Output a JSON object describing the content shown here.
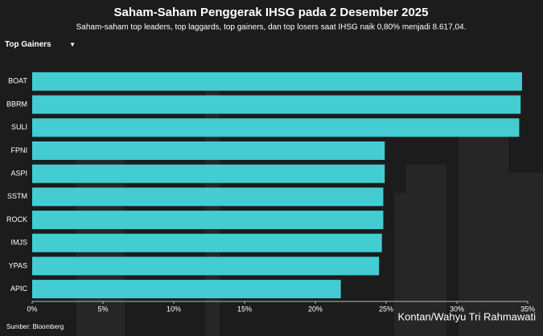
{
  "chart_data": {
    "type": "bar",
    "orientation": "horizontal",
    "title": "Saham-Saham Penggerak IHSG pada 2 Desember 2025",
    "subtitle": "Saham-saham top leaders, top laggards, top gainers, dan top losers saat IHSG naik 0,80% menjadi 8.617,04.",
    "dropdown": "Top Gainers",
    "source": "Sumber: Bloomberg",
    "credit": "Kontan/Wahyu Tri Rahmawati",
    "categories": [
      "BOAT",
      "BBRM",
      "SULI",
      "FPNI",
      "ASPI",
      "SSTM",
      "ROCK",
      "IMJS",
      "YPAS",
      "APIC"
    ],
    "values": [
      34.6,
      34.5,
      34.4,
      24.9,
      24.9,
      24.8,
      24.8,
      24.7,
      24.5,
      21.8
    ],
    "color": "#43cdd3",
    "xlim": [
      0,
      35
    ],
    "xticks": [
      {
        "value": 0,
        "label": "0%"
      },
      {
        "value": 5,
        "label": "5%"
      },
      {
        "value": 10,
        "label": "10%"
      },
      {
        "value": 15,
        "label": "15%"
      },
      {
        "value": 20,
        "label": "20%"
      },
      {
        "value": 25,
        "label": "25%"
      },
      {
        "value": 30,
        "label": "30%"
      },
      {
        "value": 35,
        "label": "35%"
      }
    ],
    "grid": false
  }
}
